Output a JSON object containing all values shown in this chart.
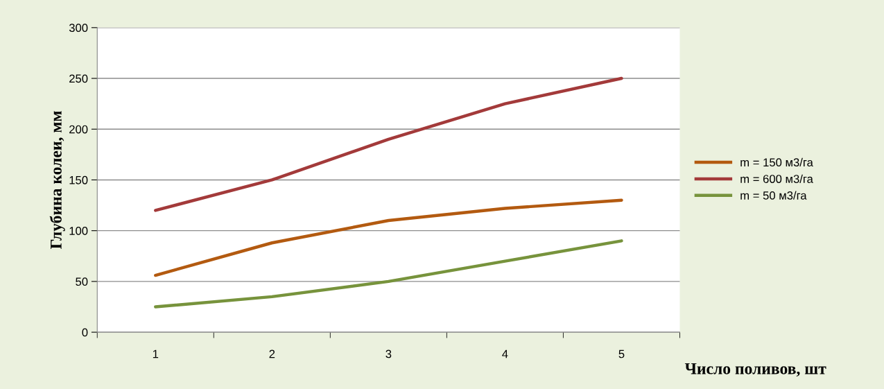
{
  "chart_data": {
    "type": "line",
    "xlabel": "Число поливов, шт",
    "ylabel": "Глубина колеи, мм",
    "categories": [
      "1",
      "2",
      "3",
      "4",
      "5"
    ],
    "series": [
      {
        "name": "m = 150 м3/га",
        "color": "#b35a10",
        "values": [
          56,
          88,
          110,
          122,
          130
        ]
      },
      {
        "name": "m = 600 м3/га",
        "color": "#a33a3a",
        "values": [
          120,
          150,
          190,
          225,
          250
        ]
      },
      {
        "name": "m = 50 м3/га",
        "color": "#77933c",
        "values": [
          25,
          35,
          50,
          70,
          90
        ]
      }
    ],
    "ylim": [
      0,
      300
    ],
    "yticks": [
      0,
      50,
      100,
      150,
      200,
      250,
      300
    ],
    "grid": "y",
    "legend": "right"
  }
}
